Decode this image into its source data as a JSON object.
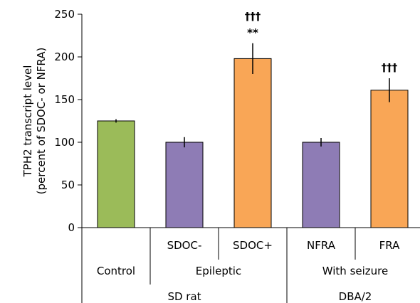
{
  "chart_data": {
    "type": "bar",
    "ylabel_line1": "TPH2 transcript level",
    "ylabel_line2": "(percent of SDOC- or NFRA)",
    "ylim": [
      0,
      250
    ],
    "yticks": [
      0,
      50,
      100,
      150,
      200,
      250
    ],
    "grid": false,
    "legend": "none",
    "categories": [
      "Control",
      "SDOC-",
      "SDOC+",
      "NFRA",
      "FRA"
    ],
    "values": [
      125,
      100,
      198,
      100,
      161
    ],
    "errors": [
      2,
      6,
      18,
      5,
      14
    ],
    "colors": [
      "#9BBB59",
      "#8E7CB5",
      "#F9A656",
      "#8E7CB5",
      "#F9A656"
    ],
    "annotations": [
      {
        "category": "SDOC+",
        "lines": [
          "†††",
          "**"
        ]
      },
      {
        "category": "FRA",
        "lines": [
          "†††"
        ]
      }
    ],
    "group_labels": {
      "level1": [
        "",
        "SDOC-",
        "SDOC+",
        "NFRA",
        "FRA"
      ],
      "level2": [
        {
          "label": "Control",
          "from": 0,
          "to": 0
        },
        {
          "label": "Epileptic",
          "from": 1,
          "to": 2
        },
        {
          "label": "With seizure",
          "from": 3,
          "to": 4
        }
      ],
      "level3": [
        {
          "label": "SD rat",
          "from": 0,
          "to": 2
        },
        {
          "label": "DBA/2",
          "from": 3,
          "to": 4
        }
      ]
    }
  }
}
